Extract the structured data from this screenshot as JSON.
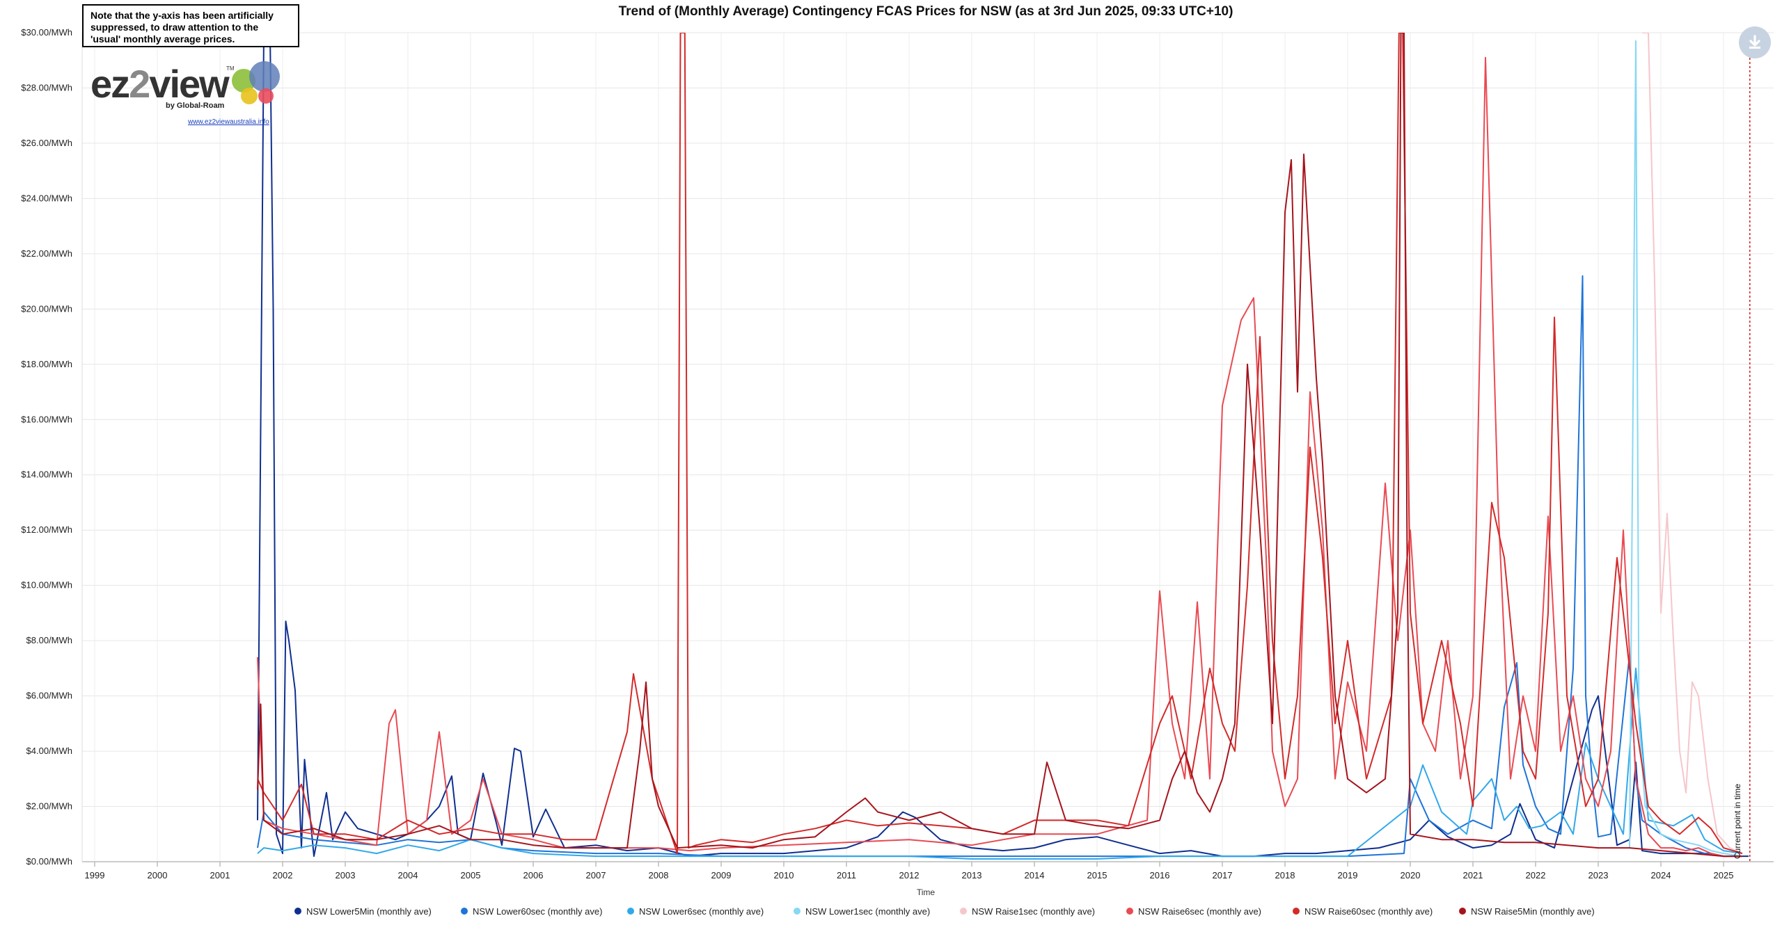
{
  "note": "Note that the y-axis has been artificially suppressed, to draw attention to the 'usual' monthly average prices.",
  "logo": {
    "brand_a": "ez",
    "brand_b": "2",
    "brand_c": "view",
    "tm": "TM",
    "by": "by Global-Roam",
    "link": "www.ez2viewaustralia.info"
  },
  "toolbar": {
    "download_icon": "download-icon"
  },
  "marker_label": "Current point in time",
  "colors": {
    "lower5min": "#0f2f8f",
    "lower60sec": "#1e74d8",
    "lower6sec": "#31a8ea",
    "lower1sec": "#86d8f4",
    "raise1sec": "#f6c6cb",
    "raise6sec": "#e94a52",
    "raise60sec": "#d32a2a",
    "raise5min": "#a5141c",
    "marker": "#d01818"
  },
  "chart_data": {
    "type": "line",
    "title": "Trend of (Monthly Average) Contingency FCAS Prices for NSW (as at 3rd Jun 2025, 09:33 UTC+10)",
    "xlabel": "Time",
    "ylabel": "",
    "xlim": [
      1998.8,
      2025.8
    ],
    "ylim": [
      0,
      30
    ],
    "x_ticks": [
      "1999",
      "2000",
      "2001",
      "2002",
      "2003",
      "2004",
      "2005",
      "2006",
      "2007",
      "2008",
      "2009",
      "2010",
      "2011",
      "2012",
      "2013",
      "2014",
      "2015",
      "2016",
      "2017",
      "2018",
      "2019",
      "2020",
      "2021",
      "2022",
      "2023",
      "2024",
      "2025"
    ],
    "y_ticks": [
      "$0.00/MWh",
      "$2.00/MWh",
      "$4.00/MWh",
      "$6.00/MWh",
      "$8.00/MWh",
      "$10.00/MWh",
      "$12.00/MWh",
      "$14.00/MWh",
      "$16.00/MWh",
      "$18.00/MWh",
      "$20.00/MWh",
      "$22.00/MWh",
      "$24.00/MWh",
      "$26.00/MWh",
      "$28.00/MWh",
      "$30.00/MWh"
    ],
    "grid": true,
    "legend": "bottom",
    "current_time_x": 2025.42,
    "series": [
      {
        "name": "NSW Lower5Min (monthly ave)",
        "key": "lower5min",
        "x": [
          2001.6,
          2001.7,
          2001.8,
          2001.85,
          2001.9,
          2002.0,
          2002.05,
          2002.1,
          2002.2,
          2002.3,
          2002.35,
          2002.5,
          2002.7,
          2002.8,
          2003.0,
          2003.2,
          2003.5,
          2003.8,
          2004.0,
          2004.3,
          2004.5,
          2004.7,
          2004.8,
          2005.0,
          2005.2,
          2005.4,
          2005.5,
          2005.7,
          2005.8,
          2006.0,
          2006.2,
          2006.5,
          2007.0,
          2007.5,
          2008.0,
          2008.5,
          2009.0,
          2009.5,
          2010.0,
          2010.5,
          2011.0,
          2011.5,
          2011.9,
          2012.1,
          2012.5,
          2013.0,
          2013.5,
          2014.0,
          2014.5,
          2015.0,
          2015.5,
          2016.0,
          2016.5,
          2017.0,
          2017.5,
          2018.0,
          2018.5,
          2019.0,
          2019.5,
          2020.0,
          2020.3,
          2020.6,
          2021.0,
          2021.3,
          2021.6,
          2021.75,
          2022.0,
          2022.3,
          2022.6,
          2022.9,
          2023.0,
          2023.3,
          2023.5,
          2023.6,
          2023.7,
          2024.0,
          2024.4,
          2024.8,
          2025.0,
          2025.2,
          2025.4
        ],
        "y": [
          1.5,
          30.0,
          30.0,
          20.0,
          1.0,
          0.3,
          8.7,
          8.0,
          6.2,
          0.5,
          3.7,
          0.2,
          2.5,
          0.8,
          1.8,
          1.2,
          1.0,
          0.8,
          1.0,
          1.5,
          2.0,
          3.1,
          1.0,
          0.8,
          3.2,
          1.5,
          0.6,
          4.1,
          4.0,
          0.9,
          1.9,
          0.5,
          0.6,
          0.4,
          0.5,
          0.2,
          0.3,
          0.3,
          0.3,
          0.4,
          0.5,
          0.9,
          1.8,
          1.6,
          0.8,
          0.5,
          0.4,
          0.5,
          0.8,
          0.9,
          0.6,
          0.3,
          0.4,
          0.2,
          0.2,
          0.3,
          0.3,
          0.4,
          0.5,
          0.8,
          1.5,
          0.9,
          0.5,
          0.6,
          1.0,
          2.1,
          0.8,
          0.5,
          3.0,
          5.5,
          6.0,
          0.6,
          0.8,
          3.6,
          0.4,
          0.3,
          0.3,
          0.3,
          0.2,
          0.2,
          0.2
        ]
      },
      {
        "name": "NSW Lower60sec (monthly ave)",
        "key": "lower60sec",
        "x": [
          2001.6,
          2001.7,
          2002.0,
          2002.5,
          2003.0,
          2003.5,
          2004.0,
          2004.5,
          2005.0,
          2005.5,
          2006.0,
          2007.0,
          2008.0,
          2009.0,
          2010.0,
          2011.0,
          2012.0,
          2013.0,
          2014.0,
          2015.0,
          2016.0,
          2017.0,
          2018.0,
          2019.0,
          2019.9,
          2020.0,
          2020.3,
          2020.6,
          2021.0,
          2021.3,
          2021.5,
          2021.7,
          2021.8,
          2022.0,
          2022.2,
          2022.4,
          2022.6,
          2022.75,
          2022.8,
          2022.9,
          2023.0,
          2023.2,
          2023.5,
          2023.6,
          2023.7,
          2024.0,
          2024.4,
          2024.7,
          2025.0,
          2025.3
        ],
        "y": [
          0.5,
          1.8,
          1.0,
          0.8,
          0.7,
          0.6,
          0.8,
          0.7,
          0.8,
          0.5,
          0.4,
          0.3,
          0.3,
          0.2,
          0.2,
          0.2,
          0.2,
          0.2,
          0.2,
          0.2,
          0.2,
          0.2,
          0.2,
          0.2,
          0.3,
          3.0,
          1.5,
          1.0,
          1.5,
          1.2,
          5.6,
          7.2,
          3.5,
          2.0,
          1.2,
          1.0,
          7.0,
          21.2,
          6.0,
          3.0,
          0.9,
          1.0,
          7.5,
          3.0,
          1.5,
          1.0,
          0.5,
          0.3,
          0.2,
          0.2
        ]
      },
      {
        "name": "NSW Lower6sec (monthly ave)",
        "key": "lower6sec",
        "x": [
          2001.6,
          2001.7,
          2002.0,
          2002.5,
          2003.0,
          2003.5,
          2004.0,
          2004.5,
          2005.0,
          2005.5,
          2006.0,
          2007.0,
          2008.0,
          2009.0,
          2010.0,
          2011.0,
          2012.0,
          2013.0,
          2014.0,
          2015.0,
          2016.0,
          2017.0,
          2018.0,
          2019.0,
          2020.0,
          2020.2,
          2020.5,
          2020.9,
          2021.0,
          2021.3,
          2021.5,
          2021.7,
          2021.9,
          2022.1,
          2022.4,
          2022.6,
          2022.8,
          2023.0,
          2023.4,
          2023.6,
          2023.8,
          2024.2,
          2024.5,
          2024.7,
          2025.0,
          2025.3
        ],
        "y": [
          0.3,
          0.5,
          0.4,
          0.6,
          0.5,
          0.3,
          0.6,
          0.4,
          0.8,
          0.5,
          0.3,
          0.2,
          0.2,
          0.2,
          0.2,
          0.2,
          0.2,
          0.1,
          0.1,
          0.1,
          0.2,
          0.2,
          0.2,
          0.2,
          2.0,
          3.5,
          1.8,
          1.0,
          2.2,
          3.0,
          1.5,
          2.0,
          1.2,
          1.3,
          1.8,
          1.0,
          4.3,
          3.0,
          1.0,
          7.0,
          1.5,
          1.3,
          1.7,
          0.8,
          0.4,
          0.3
        ]
      },
      {
        "name": "NSW Lower1sec (monthly ave)",
        "key": "lower1sec",
        "x": [
          2023.5,
          2023.6,
          2023.65,
          2023.75,
          2024.0,
          2024.2,
          2024.4,
          2024.6,
          2024.8,
          2025.0,
          2025.3
        ],
        "y": [
          0.5,
          29.7,
          5.0,
          2.0,
          1.0,
          0.8,
          0.7,
          0.6,
          0.4,
          0.3,
          0.2
        ]
      },
      {
        "name": "NSW Raise1sec (monthly ave)",
        "key": "raise1sec",
        "x": [
          2023.7,
          2023.8,
          2023.9,
          2024.0,
          2024.1,
          2024.2,
          2024.3,
          2024.4,
          2024.5,
          2024.6,
          2024.75,
          2024.9,
          2025.1,
          2025.3
        ],
        "y": [
          30.0,
          30.0,
          21.0,
          9.0,
          12.6,
          8.0,
          4.0,
          2.5,
          6.5,
          6.0,
          3.0,
          1.0,
          0.5,
          0.3
        ]
      },
      {
        "name": "NSW Raise6sec (monthly ave)",
        "key": "raise6sec",
        "x": [
          2001.6,
          2001.7,
          2002.0,
          2002.5,
          2003.0,
          2003.5,
          2003.7,
          2003.8,
          2004.0,
          2004.3,
          2004.5,
          2004.7,
          2005.0,
          2005.2,
          2005.5,
          2006.0,
          2006.5,
          2007.0,
          2007.5,
          2008.0,
          2008.5,
          2009.0,
          2010.0,
          2011.0,
          2012.0,
          2013.0,
          2014.0,
          2015.0,
          2015.8,
          2016.0,
          2016.2,
          2016.4,
          2016.6,
          2016.8,
          2017.0,
          2017.3,
          2017.5,
          2017.7,
          2017.8,
          2018.0,
          2018.2,
          2018.4,
          2018.6,
          2018.8,
          2019.0,
          2019.3,
          2019.6,
          2019.8,
          2020.0,
          2020.2,
          2020.4,
          2020.6,
          2020.8,
          2021.0,
          2021.2,
          2021.4,
          2021.6,
          2021.8,
          2022.0,
          2022.2,
          2022.4,
          2022.6,
          2022.8,
          2023.0,
          2023.2,
          2023.4,
          2023.6,
          2023.8,
          2024.0,
          2024.2,
          2024.4,
          2024.6,
          2024.8,
          2025.0,
          2025.3
        ],
        "y": [
          7.4,
          1.5,
          1.2,
          1.0,
          0.8,
          0.6,
          5.0,
          5.5,
          1.0,
          1.5,
          4.7,
          1.0,
          1.5,
          3.0,
          1.0,
          0.8,
          0.5,
          0.5,
          0.5,
          0.5,
          0.4,
          0.5,
          0.6,
          0.7,
          0.8,
          0.6,
          1.0,
          1.0,
          1.5,
          9.8,
          5.0,
          3.0,
          9.4,
          3.0,
          16.5,
          19.6,
          20.4,
          11.0,
          4.0,
          2.0,
          3.0,
          17.0,
          12.0,
          3.0,
          6.5,
          4.0,
          13.7,
          8.0,
          12.0,
          5.0,
          4.0,
          8.0,
          3.0,
          6.0,
          29.1,
          13.0,
          3.0,
          6.0,
          4.0,
          12.5,
          4.0,
          6.0,
          3.0,
          2.0,
          4.0,
          12.0,
          3.0,
          1.0,
          0.5,
          0.5,
          0.4,
          0.5,
          0.3,
          0.2,
          0.2
        ]
      },
      {
        "name": "NSW Raise60sec (monthly ave)",
        "key": "raise60sec",
        "x": [
          2001.6,
          2001.7,
          2002.0,
          2002.3,
          2002.5,
          2003.0,
          2003.5,
          2004.0,
          2004.5,
          2005.0,
          2005.5,
          2006.0,
          2006.5,
          2007.0,
          2007.5,
          2007.6,
          2007.9,
          2008.3,
          2008.35,
          2008.42,
          2008.48,
          2008.6,
          2009.0,
          2009.5,
          2010.0,
          2010.5,
          2011.0,
          2011.5,
          2012.0,
          2012.5,
          2013.0,
          2013.5,
          2014.0,
          2014.5,
          2015.0,
          2015.5,
          2016.0,
          2016.2,
          2016.5,
          2016.8,
          2017.0,
          2017.2,
          2017.4,
          2017.6,
          2017.8,
          2018.0,
          2018.2,
          2018.4,
          2018.6,
          2018.8,
          2019.0,
          2019.3,
          2019.7,
          2019.82,
          2019.88,
          2020.0,
          2020.2,
          2020.5,
          2020.8,
          2021.0,
          2021.3,
          2021.5,
          2021.8,
          2022.0,
          2022.2,
          2022.3,
          2022.5,
          2022.8,
          2023.0,
          2023.3,
          2023.6,
          2023.8,
          2024.0,
          2024.3,
          2024.6,
          2024.8,
          2025.0,
          2025.3
        ],
        "y": [
          3.0,
          2.5,
          1.5,
          2.8,
          1.0,
          1.0,
          0.8,
          1.5,
          1.0,
          1.2,
          1.0,
          1.0,
          0.8,
          0.8,
          4.7,
          6.8,
          3.0,
          0.3,
          30.0,
          30.0,
          0.5,
          0.6,
          0.8,
          0.7,
          1.0,
          1.2,
          1.5,
          1.3,
          1.4,
          1.3,
          1.2,
          1.0,
          1.5,
          1.5,
          1.5,
          1.3,
          5.0,
          6.0,
          3.0,
          7.0,
          5.0,
          4.0,
          10.0,
          19.0,
          8.0,
          3.0,
          6.0,
          15.0,
          11.0,
          5.0,
          8.0,
          3.0,
          6.0,
          30.0,
          30.0,
          9.0,
          5.0,
          8.0,
          5.0,
          2.0,
          13.0,
          11.0,
          4.0,
          3.0,
          9.0,
          19.7,
          6.0,
          2.0,
          3.0,
          11.0,
          5.0,
          2.0,
          1.5,
          1.0,
          1.6,
          1.2,
          0.5,
          0.3
        ]
      },
      {
        "name": "NSW Raise5Min (monthly ave)",
        "key": "raise5min",
        "x": [
          2001.6,
          2001.65,
          2001.7,
          2002.0,
          2002.5,
          2003.0,
          2003.5,
          2004.0,
          2004.5,
          2005.0,
          2005.5,
          2006.0,
          2006.5,
          2007.0,
          2007.5,
          2007.7,
          2007.8,
          2007.9,
          2008.0,
          2008.3,
          2009.0,
          2009.5,
          2010.0,
          2010.5,
          2011.0,
          2011.3,
          2011.5,
          2012.0,
          2012.5,
          2013.0,
          2013.5,
          2014.0,
          2014.2,
          2014.5,
          2015.0,
          2015.5,
          2016.0,
          2016.2,
          2016.4,
          2016.6,
          2016.8,
          2017.0,
          2017.2,
          2017.4,
          2017.6,
          2017.8,
          2018.0,
          2018.1,
          2018.2,
          2018.3,
          2018.5,
          2018.6,
          2018.8,
          2019.0,
          2019.3,
          2019.6,
          2019.8,
          2019.85,
          2019.9,
          2019.95,
          2020.0,
          2020.5,
          2021.0,
          2021.5,
          2022.0,
          2022.5,
          2023.0,
          2023.5,
          2024.0,
          2024.5,
          2025.0,
          2025.3
        ],
        "y": [
          2.6,
          5.7,
          1.5,
          1.0,
          1.2,
          0.8,
          0.8,
          1.0,
          1.3,
          0.8,
          0.8,
          0.6,
          0.5,
          0.5,
          0.5,
          4.0,
          6.5,
          3.0,
          2.0,
          0.5,
          0.6,
          0.5,
          0.8,
          0.9,
          1.8,
          2.3,
          1.8,
          1.5,
          1.8,
          1.2,
          1.0,
          1.0,
          3.6,
          1.5,
          1.3,
          1.2,
          1.5,
          3.0,
          4.0,
          2.5,
          1.8,
          3.0,
          5.0,
          18.0,
          12.0,
          5.0,
          23.5,
          25.4,
          17.0,
          25.6,
          17.5,
          14.4,
          6.0,
          3.0,
          2.5,
          3.0,
          9.0,
          30.0,
          30.0,
          11.0,
          1.0,
          0.8,
          0.8,
          0.7,
          0.7,
          0.6,
          0.5,
          0.5,
          0.4,
          0.3,
          0.2,
          0.2
        ]
      }
    ]
  }
}
